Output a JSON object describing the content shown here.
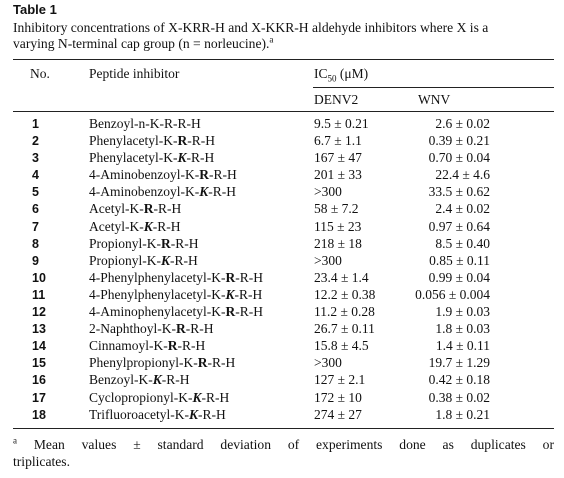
{
  "table": {
    "label": "Table 1",
    "caption_line1": "Inhibitory concentrations of X-KRR-H and X-KKR-H aldehyde inhibitors where X is a",
    "caption_line2": "varying N-terminal cap group (n = norleucine).",
    "caption_marker": "a",
    "headers": {
      "no": "No.",
      "peptide": "Peptide inhibitor",
      "ic50_prefix": "IC",
      "ic50_sub": "50",
      "ic50_suffix": " (μM)",
      "denv2": "DENV2",
      "wnv": "WNV"
    },
    "rows": [
      {
        "no": "1",
        "cap": "Benzoyl-n-K-",
        "mid": "R",
        "tail": "-R-H",
        "mid_style": "plain",
        "denv2": "9.5 ± 0.21",
        "wnv": "2.6 ± 0.02"
      },
      {
        "no": "2",
        "cap": "Phenylacetyl-K-",
        "mid": "R",
        "tail": "-R-H",
        "mid_style": "bold",
        "denv2": "6.7 ± 1.1",
        "wnv": "0.39 ± 0.21"
      },
      {
        "no": "3",
        "cap": "Phenylacetyl-K-",
        "mid": "K",
        "tail": "-R-H",
        "mid_style": "bolditalic",
        "denv2": "167 ± 47",
        "wnv": "0.70 ± 0.04"
      },
      {
        "no": "4",
        "cap": "4-Aminobenzoyl-K-",
        "mid": "R",
        "tail": "-R-H",
        "mid_style": "bold",
        "denv2": "201 ± 33",
        "wnv": "22.4 ± 4.6"
      },
      {
        "no": "5",
        "cap": "4-Aminobenzoyl-K-",
        "mid": "K",
        "tail": "-R-H",
        "mid_style": "bolditalic",
        "denv2": ">300",
        "wnv": "33.5 ± 0.62"
      },
      {
        "no": "6",
        "cap": "Acetyl-K-",
        "mid": "R",
        "tail": "-R-H",
        "mid_style": "bold",
        "denv2": "58 ± 7.2",
        "wnv": "2.4 ± 0.02"
      },
      {
        "no": "7",
        "cap": "Acetyl-K-",
        "mid": "K",
        "tail": "-R-H",
        "mid_style": "bolditalic",
        "denv2": "115 ± 23",
        "wnv": "0.97 ± 0.64"
      },
      {
        "no": "8",
        "cap": "Propionyl-K-",
        "mid": "R",
        "tail": "-R-H",
        "mid_style": "bold",
        "denv2": "218 ± 18",
        "wnv": "8.5 ± 0.40"
      },
      {
        "no": "9",
        "cap": "Propionyl-K-",
        "mid": "K",
        "tail": "-R-H",
        "mid_style": "bolditalic",
        "denv2": ">300",
        "wnv": "0.85 ± 0.11"
      },
      {
        "no": "10",
        "cap": "4-Phenylphenylacetyl-K-",
        "mid": "R",
        "tail": "-R-H",
        "mid_style": "bold",
        "denv2": "23.4 ± 1.4",
        "wnv": "0.99 ± 0.04"
      },
      {
        "no": "11",
        "cap": "4-Phenylphenylacetyl-K-",
        "mid": "K",
        "tail": "-R-H",
        "mid_style": "bolditalic",
        "denv2": "12.2 ± 0.38",
        "wnv": "0.056 ± 0.004"
      },
      {
        "no": "12",
        "cap": "4-Aminophenylacetyl-K-",
        "mid": "R",
        "tail": "-R-H",
        "mid_style": "bold",
        "denv2": "11.2 ± 0.28",
        "wnv": "1.9 ± 0.03"
      },
      {
        "no": "13",
        "cap": "2-Naphthoyl-K-",
        "mid": "R",
        "tail": "-R-H",
        "mid_style": "bold",
        "denv2": "26.7 ± 0.11",
        "wnv": "1.8 ± 0.03"
      },
      {
        "no": "14",
        "cap": "Cinnamoyl-K-",
        "mid": "R",
        "tail": "-R-H",
        "mid_style": "bold",
        "denv2": "15.8 ± 4.5",
        "wnv": "1.4 ± 0.11"
      },
      {
        "no": "15",
        "cap": "Phenylpropionyl-K-",
        "mid": "R",
        "tail": "-R-H",
        "mid_style": "bold",
        "denv2": ">300",
        "wnv": "19.7 ± 1.29"
      },
      {
        "no": "16",
        "cap": "Benzoyl-K-",
        "mid": "K",
        "tail": "-R-H",
        "mid_style": "bolditalic",
        "denv2": "127 ± 2.1",
        "wnv": "0.42 ± 0.18"
      },
      {
        "no": "17",
        "cap": "Cyclopropionyl-K-",
        "mid": "K",
        "tail": "-R-H",
        "mid_style": "bolditalic",
        "denv2": "172 ± 10",
        "wnv": "0.38 ± 0.02"
      },
      {
        "no": "18",
        "cap": "Trifluoroacetyl-K-",
        "mid": "K",
        "tail": "-R-H",
        "mid_style": "bolditalic",
        "denv2": "274 ± 27",
        "wnv": "1.8 ± 0.21"
      }
    ],
    "footnote": {
      "marker": "a",
      "line1": " Mean values ± standard deviation of experiments done as duplicates or",
      "line2": "triplicates."
    }
  }
}
